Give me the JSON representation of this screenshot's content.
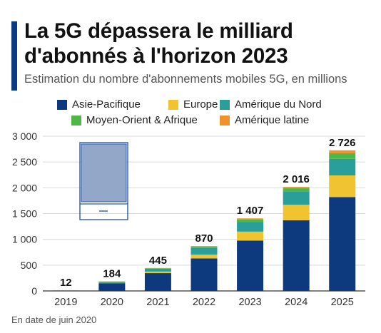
{
  "title": "La 5G dépassera le milliard d'abonnés à l'horizon 2023",
  "subtitle": "Estimation du nombre d'abonnements mobiles 5G, en millions",
  "footnote": "En date de juin 2020",
  "chart_data": {
    "type": "bar",
    "stacked": true,
    "title": "La 5G dépassera le milliard d'abonnés à l'horizon 2023",
    "subtitle": "Estimation du nombre d'abonnements mobiles 5G, en millions",
    "xlabel": "",
    "ylabel": "",
    "ylim": [
      0,
      3000
    ],
    "yticks": [
      0,
      500,
      1000,
      1500,
      2000,
      2500,
      3000
    ],
    "ytick_labels": [
      "0",
      "500",
      "1 000",
      "1 500",
      "2 000",
      "2 500",
      "3 000"
    ],
    "grid": true,
    "legend_position": "top",
    "categories": [
      "2019",
      "2020",
      "2021",
      "2022",
      "2023",
      "2024",
      "2025"
    ],
    "totals": [
      12,
      184,
      445,
      870,
      1407,
      2016,
      2726
    ],
    "total_labels": [
      "12",
      "184",
      "445",
      "870",
      "1 407",
      "2 016",
      "2 726"
    ],
    "series": [
      {
        "name": "Asie-Pacifique",
        "color": "#0d3a7e",
        "values": [
          4,
          150,
          345,
          630,
          975,
          1370,
          1820
        ]
      },
      {
        "name": "Europe",
        "color": "#f0c431",
        "values": [
          1,
          6,
          30,
          75,
          175,
          300,
          420
        ]
      },
      {
        "name": "Amérique du Nord",
        "color": "#2a9f9a",
        "values": [
          6,
          25,
          55,
          125,
          190,
          260,
          320
        ]
      },
      {
        "name": "Moyen-Orient & Afrique",
        "color": "#4db848",
        "values": [
          1,
          2,
          10,
          25,
          45,
          60,
          110
        ]
      },
      {
        "name": "Amérique latine",
        "color": "#f0922b",
        "values": [
          0,
          1,
          5,
          15,
          22,
          26,
          56
        ]
      }
    ]
  }
}
